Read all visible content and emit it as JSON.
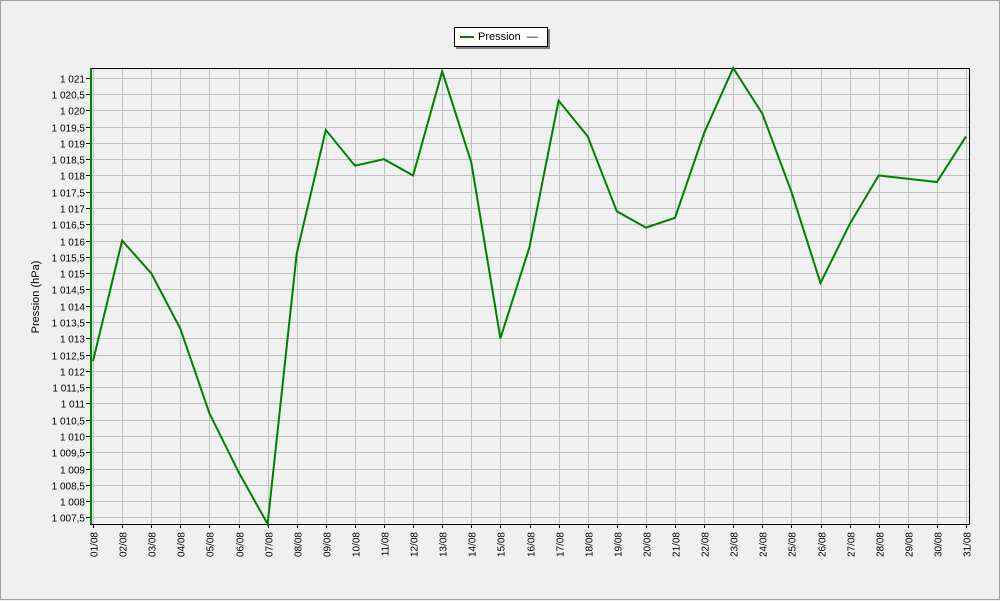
{
  "chart_data": {
    "type": "line",
    "title": "",
    "xlabel": "",
    "ylabel": "Pression (hPa)",
    "ylim": [
      1007.3,
      1021.3
    ],
    "grid": true,
    "legend_position": "top-center",
    "y_ticks": [
      "1 007,5",
      "1 008",
      "1 008,5",
      "1 009",
      "1 009,5",
      "1 010",
      "1 010,5",
      "1 011",
      "1 011,5",
      "1 012",
      "1 012,5",
      "1 013",
      "1 013,5",
      "1 014",
      "1 014,5",
      "1 015",
      "1 015,5",
      "1 016",
      "1 016,5",
      "1 017",
      "1 017,5",
      "1 018",
      "1 018,5",
      "1 019",
      "1 019,5",
      "1 020",
      "1 020,5",
      "1 021"
    ],
    "categories": [
      "01/08",
      "02/08",
      "03/08",
      "04/08",
      "05/08",
      "06/08",
      "07/08",
      "08/08",
      "09/08",
      "10/08",
      "11/08",
      "12/08",
      "13/08",
      "14/08",
      "15/08",
      "16/08",
      "17/08",
      "18/08",
      "19/08",
      "20/08",
      "21/08",
      "22/08",
      "23/08",
      "24/08",
      "25/08",
      "26/08",
      "27/08",
      "28/08",
      "29/08",
      "30/08",
      "31/08"
    ],
    "series": [
      {
        "name": "Pression",
        "color": "#008000",
        "values": [
          1012.3,
          1016.0,
          1015.0,
          1013.3,
          1010.7,
          1008.9,
          1007.3,
          1015.6,
          1019.4,
          1018.3,
          1018.5,
          1018.0,
          1021.2,
          1018.4,
          1013.0,
          1015.8,
          1020.3,
          1019.2,
          1016.9,
          1016.4,
          1016.7,
          1019.3,
          1021.3,
          1019.9,
          1017.5,
          1014.7,
          1016.5,
          1018.0,
          1017.9,
          1017.8,
          1019.2
        ]
      }
    ],
    "legend_dash": "—"
  }
}
